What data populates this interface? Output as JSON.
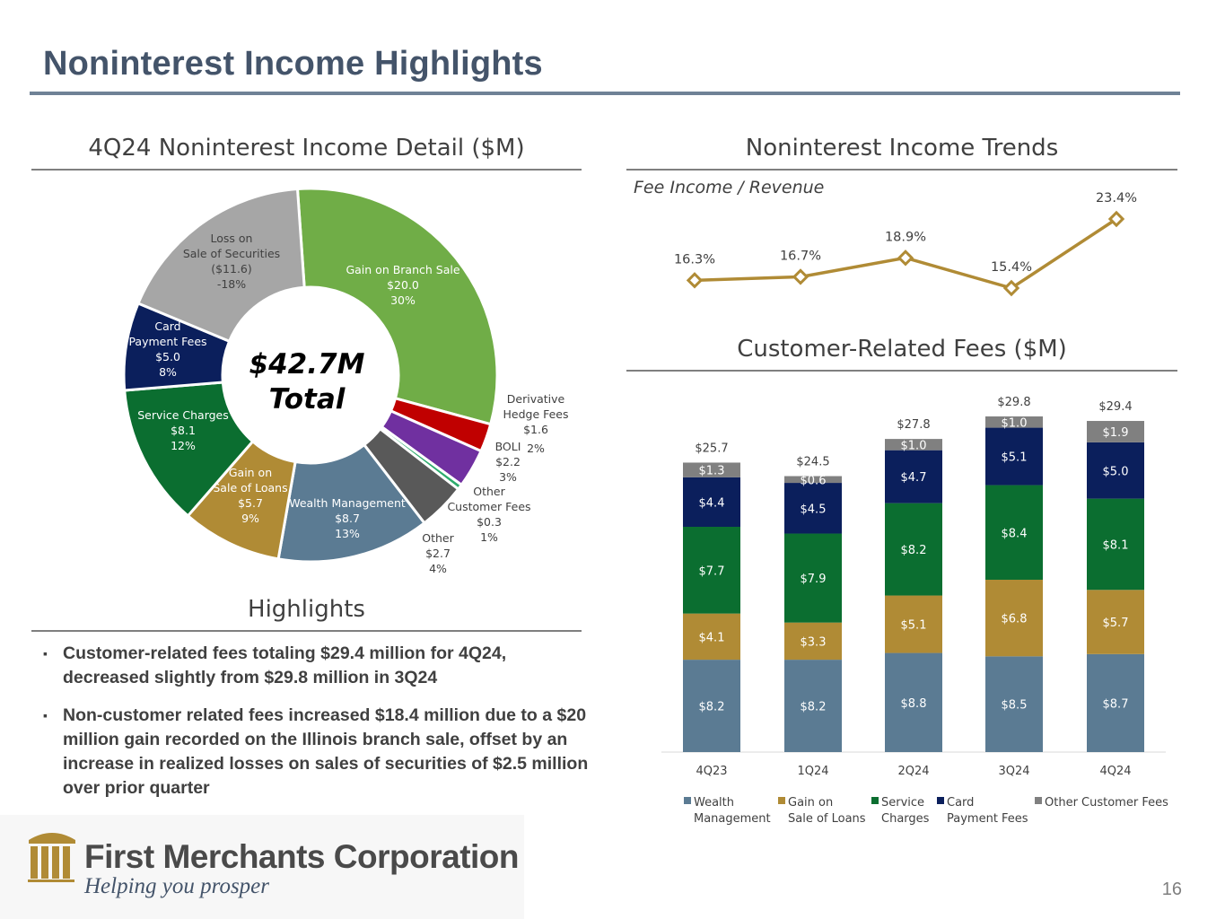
{
  "slide": {
    "title": "Noninterest Income Highlights",
    "page_number": "16"
  },
  "donut_section": {
    "heading": "4Q24 Noninterest Income Detail ($M)",
    "center_line1": "$42.7M",
    "center_line2": "Total"
  },
  "trends_section": {
    "heading": "Noninterest Income Trends",
    "subtitle": "Fee Income / Revenue"
  },
  "fees_section": {
    "heading": "Customer-Related Fees ($M)"
  },
  "highlights": {
    "heading": "Highlights",
    "bullet_glyph": "▪",
    "items": [
      "Customer-related fees totaling $29.4 million for 4Q24, decreased slightly from $29.8 million in 3Q24",
      "Non-customer related fees increased $18.4 million due to a $20 million gain recorded on the Illinois branch sale, offset by an increase in realized losses on sales of securities of $2.5 million over prior quarter"
    ]
  },
  "logo": {
    "company": "First Merchants Corporation",
    "tagline": "Helping you prosper"
  },
  "colors": {
    "title": "#44546a",
    "wealth": "#5b7b93",
    "gain_loans": "#b08b35",
    "service": "#0b6e30",
    "card": "#0b1f5c",
    "other_fees": "#808080",
    "gain_branch": "#70ad47",
    "derivative": "#c00000",
    "boli": "#7030a0",
    "other_customer": "#2eab6e",
    "other": "#595959",
    "loss_securities": "#a6a6a6",
    "line": "#b08b35"
  },
  "chart_data": [
    {
      "type": "pie",
      "title": "4Q24 Noninterest Income Detail ($M)",
      "slices": [
        {
          "label": "Gain on Branch Sale",
          "value": 20.0,
          "value_label": "$20.0",
          "percent": "30%",
          "color": "#70ad47"
        },
        {
          "label": "Derivative Hedge Fees",
          "value": 1.6,
          "value_label": "$1.6",
          "percent": "2%",
          "color": "#c00000"
        },
        {
          "label": "BOLI",
          "value": 2.2,
          "value_label": "$2.2",
          "percent": "3%",
          "color": "#7030a0"
        },
        {
          "label": "Other Customer Fees",
          "value": 0.3,
          "value_label": "$0.3",
          "percent": "1%",
          "color": "#2eab6e"
        },
        {
          "label": "Other",
          "value": 2.7,
          "value_label": "$2.7",
          "percent": "4%",
          "color": "#595959"
        },
        {
          "label": "Wealth Management",
          "value": 8.7,
          "value_label": "$8.7",
          "percent": "13%",
          "color": "#5b7b93"
        },
        {
          "label": "Gain on Sale of Loans",
          "value": 5.7,
          "value_label": "$5.7",
          "percent": "9%",
          "color": "#b08b35"
        },
        {
          "label": "Service Charges",
          "value": 8.1,
          "value_label": "$8.1",
          "percent": "12%",
          "color": "#0b6e30"
        },
        {
          "label": "Card Payment Fees",
          "value": 5.0,
          "value_label": "$5.0",
          "percent": "8%",
          "color": "#0b1f5c"
        },
        {
          "label": "Loss on Sale of Securities",
          "value": -11.6,
          "value_label": "($11.6)",
          "percent": "-18%",
          "color": "#a6a6a6"
        }
      ]
    },
    {
      "type": "line",
      "title": "Noninterest Income Trends",
      "subtitle": "Fee Income / Revenue",
      "x": [
        "4Q23",
        "1Q24",
        "2Q24",
        "3Q24",
        "4Q24"
      ],
      "values": [
        16.3,
        16.7,
        18.9,
        15.4,
        23.4
      ],
      "value_labels": [
        "16.3%",
        "16.7%",
        "18.9%",
        "15.4%",
        "23.4%"
      ]
    },
    {
      "type": "bar",
      "stacked": true,
      "title": "Customer-Related Fees ($M)",
      "categories": [
        "4Q23",
        "1Q24",
        "2Q24",
        "3Q24",
        "4Q24"
      ],
      "series": [
        {
          "name": "Wealth Management",
          "color": "#5b7b93",
          "values": [
            8.2,
            8.2,
            8.8,
            8.5,
            8.7
          ]
        },
        {
          "name": "Gain on Sale of Loans",
          "color": "#b08b35",
          "values": [
            4.1,
            3.3,
            5.1,
            6.8,
            5.7
          ]
        },
        {
          "name": "Service Charges",
          "color": "#0b6e30",
          "values": [
            7.7,
            7.9,
            8.2,
            8.4,
            8.1
          ]
        },
        {
          "name": "Card Payment Fees",
          "color": "#0b1f5c",
          "values": [
            4.4,
            4.5,
            4.7,
            5.1,
            5.0
          ]
        },
        {
          "name": "Other Customer Fees",
          "color": "#808080",
          "values": [
            1.3,
            0.6,
            1.0,
            1.0,
            1.9
          ]
        }
      ],
      "totals": [
        "$25.7",
        "$24.5",
        "$27.8",
        "$29.8",
        "$29.4"
      ],
      "legend": "bottom"
    }
  ]
}
